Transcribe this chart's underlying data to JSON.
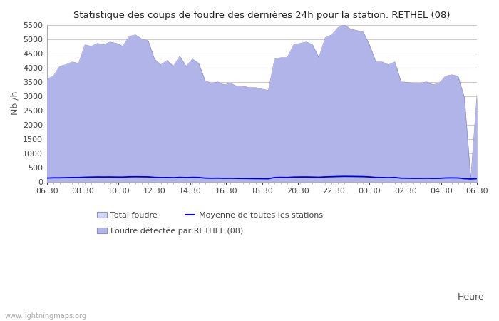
{
  "title": "Statistique des coups de foudre des dernières 24h pour la station: RETHEL (08)",
  "ylabel": "Nb /h",
  "xlabel": "Heure",
  "watermark": "www.lightningmaps.org",
  "x_labels": [
    "06:30",
    "08:30",
    "10:30",
    "12:30",
    "14:30",
    "16:30",
    "18:30",
    "20:30",
    "22:30",
    "00:30",
    "02:30",
    "04:30",
    "06:30"
  ],
  "ylim": [
    0,
    5500
  ],
  "yticks": [
    0,
    500,
    1000,
    1500,
    2000,
    2500,
    3000,
    3500,
    4000,
    4500,
    5000,
    5500
  ],
  "bg_color": "#ffffff",
  "plot_bg_color": "#ffffff",
  "grid_color": "#cccccc",
  "fill_color": "#d0d4f5",
  "fill_rethel_color": "#b0b4e8",
  "line_moyenne_color": "#0000dd",
  "total_foudre": [
    3600,
    3700,
    4050,
    4100,
    4200,
    4150,
    4800,
    4750,
    4850,
    4800,
    4900,
    4850,
    4750,
    5100,
    5150,
    5000,
    4950,
    4300,
    4100,
    4250,
    4050,
    4400,
    4050,
    4300,
    4150,
    3550,
    3450,
    3500,
    3400,
    3450,
    3350,
    3350,
    3300,
    3300,
    3250,
    3200,
    4300,
    4350,
    4350,
    4800,
    4850,
    4900,
    4800,
    4350,
    5050,
    5150,
    5400,
    5500,
    5350,
    5300,
    5250,
    4800,
    4200,
    4200,
    4100,
    4200,
    3500,
    3480,
    3450,
    3450,
    3500,
    3400,
    3450,
    3700,
    3750,
    3700,
    2950,
    100,
    3050
  ],
  "rethel_foudre": [
    3600,
    3700,
    4050,
    4100,
    4200,
    4150,
    4800,
    4750,
    4850,
    4800,
    4900,
    4850,
    4750,
    5100,
    5150,
    5000,
    4950,
    4300,
    4100,
    4250,
    4050,
    4400,
    4050,
    4300,
    4150,
    3550,
    3450,
    3500,
    3400,
    3450,
    3350,
    3350,
    3300,
    3300,
    3250,
    3200,
    4300,
    4350,
    4350,
    4800,
    4850,
    4900,
    4800,
    4350,
    5050,
    5150,
    5400,
    5500,
    5350,
    5300,
    5250,
    4800,
    4200,
    4200,
    4100,
    4200,
    3500,
    3480,
    3450,
    3450,
    3500,
    3400,
    3450,
    3700,
    3750,
    3700,
    2950,
    100,
    3050
  ],
  "moyenne": [
    130,
    140,
    140,
    145,
    150,
    150,
    160,
    165,
    170,
    168,
    170,
    165,
    165,
    175,
    178,
    175,
    173,
    155,
    148,
    150,
    145,
    155,
    148,
    155,
    152,
    130,
    125,
    128,
    122,
    125,
    120,
    118,
    115,
    112,
    110,
    108,
    150,
    155,
    152,
    165,
    168,
    170,
    165,
    158,
    172,
    178,
    185,
    190,
    188,
    185,
    182,
    170,
    152,
    150,
    145,
    152,
    128,
    125,
    122,
    122,
    125,
    120,
    122,
    135,
    138,
    135,
    110,
    100,
    112
  ],
  "legend_total_label": "Total foudre",
  "legend_rethel_label": "Foudre détectée par RETHEL (08)",
  "legend_moyenne_label": "Moyenne de toutes les stations"
}
